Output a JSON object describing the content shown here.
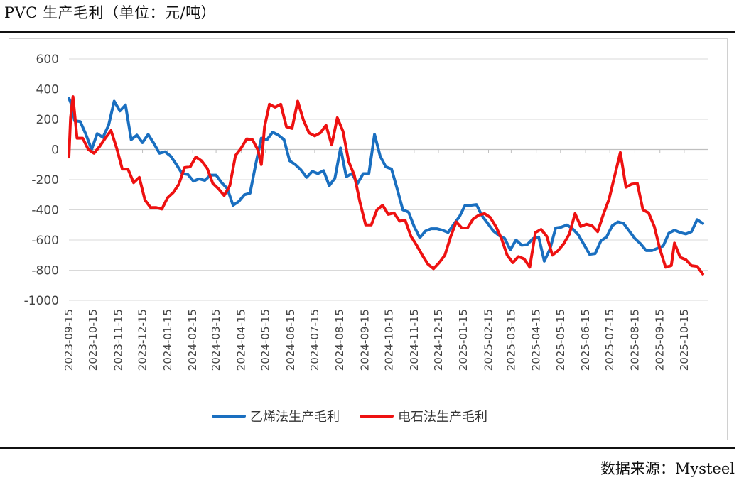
{
  "header": {
    "title": "PVC 生产毛利（单位：元/吨）"
  },
  "footer": {
    "source": "数据来源：Mysteel"
  },
  "colors": {
    "series1": "#1a6fc0",
    "series2": "#ee1111",
    "grid": "#d9d9d9",
    "axis": "#bfbfbf"
  },
  "chart_data": {
    "type": "line",
    "title": "",
    "xlabel": "",
    "ylabel": "",
    "ylim": [
      -1000,
      600
    ],
    "yticks": [
      600,
      400,
      200,
      0,
      -200,
      -400,
      -600,
      -800,
      -1000
    ],
    "grid": "horizontal",
    "legend_position": "bottom",
    "x_tick_labels": [
      "2023-09-15",
      "2023-10-15",
      "2023-11-15",
      "2023-12-15",
      "2024-01-15",
      "2024-02-15",
      "2024-03-15",
      "2024-04-15",
      "2024-05-15",
      "2024-06-15",
      "2024-07-15",
      "2024-08-15",
      "2024-09-15",
      "2024-10-15",
      "2024-11-15",
      "2024-12-15",
      "2025-01-15",
      "2025-02-15",
      "2025-03-15",
      "2025-04-15",
      "2025-05-15",
      "2025-06-15",
      "2025-07-15",
      "2025-08-15",
      "2025-09-15",
      "2025-10-15"
    ],
    "x_start": "2023-09-15",
    "x_end": "2025-11-14",
    "series": [
      {
        "name": "乙烯法生产毛利",
        "color": "#1a6fc0",
        "points": [
          [
            "2023-09-15",
            340
          ],
          [
            "2023-09-18",
            300
          ],
          [
            "2023-09-22",
            190
          ],
          [
            "2023-09-29",
            185
          ],
          [
            "2023-10-06",
            100
          ],
          [
            "2023-10-13",
            0
          ],
          [
            "2023-10-20",
            105
          ],
          [
            "2023-10-27",
            80
          ],
          [
            "2023-11-03",
            160
          ],
          [
            "2023-11-10",
            320
          ],
          [
            "2023-11-17",
            255
          ],
          [
            "2023-11-24",
            295
          ],
          [
            "2023-12-01",
            65
          ],
          [
            "2023-12-08",
            95
          ],
          [
            "2023-12-15",
            45
          ],
          [
            "2023-12-22",
            100
          ],
          [
            "2023-12-29",
            40
          ],
          [
            "2024-01-05",
            -25
          ],
          [
            "2024-01-12",
            -15
          ],
          [
            "2024-01-19",
            -45
          ],
          [
            "2024-01-26",
            -100
          ],
          [
            "2024-02-02",
            -160
          ],
          [
            "2024-02-09",
            -165
          ],
          [
            "2024-02-16",
            -210
          ],
          [
            "2024-02-23",
            -195
          ],
          [
            "2024-03-01",
            -205
          ],
          [
            "2024-03-08",
            -170
          ],
          [
            "2024-03-15",
            -170
          ],
          [
            "2024-03-22",
            -220
          ],
          [
            "2024-03-29",
            -260
          ],
          [
            "2024-04-05",
            -370
          ],
          [
            "2024-04-12",
            -345
          ],
          [
            "2024-04-19",
            -300
          ],
          [
            "2024-04-26",
            -290
          ],
          [
            "2024-05-03",
            -100
          ],
          [
            "2024-05-10",
            75
          ],
          [
            "2024-05-17",
            65
          ],
          [
            "2024-05-24",
            115
          ],
          [
            "2024-05-31",
            95
          ],
          [
            "2024-06-07",
            65
          ],
          [
            "2024-06-14",
            -75
          ],
          [
            "2024-06-21",
            -100
          ],
          [
            "2024-06-28",
            -135
          ],
          [
            "2024-07-05",
            -185
          ],
          [
            "2024-07-12",
            -145
          ],
          [
            "2024-07-19",
            -160
          ],
          [
            "2024-07-26",
            -140
          ],
          [
            "2024-08-02",
            -240
          ],
          [
            "2024-08-09",
            -190
          ],
          [
            "2024-08-16",
            10
          ],
          [
            "2024-08-23",
            -180
          ],
          [
            "2024-08-30",
            -160
          ],
          [
            "2024-09-06",
            -225
          ],
          [
            "2024-09-13",
            -160
          ],
          [
            "2024-09-20",
            -160
          ],
          [
            "2024-09-27",
            100
          ],
          [
            "2024-10-04",
            -45
          ],
          [
            "2024-10-11",
            -115
          ],
          [
            "2024-10-18",
            -130
          ],
          [
            "2024-10-25",
            -260
          ],
          [
            "2024-11-01",
            -400
          ],
          [
            "2024-11-08",
            -415
          ],
          [
            "2024-11-15",
            -510
          ],
          [
            "2024-11-22",
            -585
          ],
          [
            "2024-11-29",
            -540
          ],
          [
            "2024-12-06",
            -525
          ],
          [
            "2024-12-13",
            -525
          ],
          [
            "2024-12-20",
            -535
          ],
          [
            "2024-12-27",
            -550
          ],
          [
            "2025-01-03",
            -495
          ],
          [
            "2025-01-10",
            -445
          ],
          [
            "2025-01-17",
            -370
          ],
          [
            "2025-01-24",
            -370
          ],
          [
            "2025-01-31",
            -365
          ],
          [
            "2025-02-07",
            -440
          ],
          [
            "2025-02-14",
            -490
          ],
          [
            "2025-02-21",
            -540
          ],
          [
            "2025-02-28",
            -570
          ],
          [
            "2025-03-07",
            -590
          ],
          [
            "2025-03-14",
            -665
          ],
          [
            "2025-03-21",
            -600
          ],
          [
            "2025-03-28",
            -635
          ],
          [
            "2025-04-04",
            -630
          ],
          [
            "2025-04-11",
            -590
          ],
          [
            "2025-04-18",
            -580
          ],
          [
            "2025-04-25",
            -740
          ],
          [
            "2025-05-02",
            -660
          ],
          [
            "2025-05-09",
            -520
          ],
          [
            "2025-05-16",
            -515
          ],
          [
            "2025-05-23",
            -500
          ],
          [
            "2025-05-30",
            -525
          ],
          [
            "2025-06-06",
            -565
          ],
          [
            "2025-06-13",
            -630
          ],
          [
            "2025-06-20",
            -695
          ],
          [
            "2025-06-27",
            -690
          ],
          [
            "2025-07-04",
            -605
          ],
          [
            "2025-07-11",
            -580
          ],
          [
            "2025-07-18",
            -505
          ],
          [
            "2025-07-25",
            -480
          ],
          [
            "2025-08-01",
            -490
          ],
          [
            "2025-08-08",
            -540
          ],
          [
            "2025-08-15",
            -590
          ],
          [
            "2025-08-22",
            -625
          ],
          [
            "2025-08-29",
            -670
          ],
          [
            "2025-09-05",
            -670
          ],
          [
            "2025-09-12",
            -655
          ],
          [
            "2025-09-19",
            -640
          ],
          [
            "2025-09-26",
            -555
          ],
          [
            "2025-10-03",
            -535
          ],
          [
            "2025-10-10",
            -550
          ],
          [
            "2025-10-17",
            -560
          ],
          [
            "2025-10-24",
            -545
          ],
          [
            "2025-10-31",
            -465
          ],
          [
            "2025-11-07",
            -490
          ]
        ]
      },
      {
        "name": "电石法生产毛利",
        "color": "#ee1111",
        "points": [
          [
            "2023-09-15",
            -50
          ],
          [
            "2023-09-17",
            210
          ],
          [
            "2023-09-20",
            350
          ],
          [
            "2023-09-25",
            75
          ],
          [
            "2023-10-02",
            75
          ],
          [
            "2023-10-09",
            0
          ],
          [
            "2023-10-16",
            -25
          ],
          [
            "2023-10-23",
            20
          ],
          [
            "2023-10-30",
            75
          ],
          [
            "2023-11-06",
            125
          ],
          [
            "2023-11-13",
            10
          ],
          [
            "2023-11-20",
            -130
          ],
          [
            "2023-11-27",
            -130
          ],
          [
            "2023-12-04",
            -220
          ],
          [
            "2023-12-11",
            -185
          ],
          [
            "2023-12-18",
            -335
          ],
          [
            "2023-12-25",
            -385
          ],
          [
            "2024-01-01",
            -385
          ],
          [
            "2024-01-08",
            -395
          ],
          [
            "2024-01-15",
            -320
          ],
          [
            "2024-01-22",
            -285
          ],
          [
            "2024-01-29",
            -230
          ],
          [
            "2024-02-05",
            -120
          ],
          [
            "2024-02-12",
            -115
          ],
          [
            "2024-02-19",
            -50
          ],
          [
            "2024-02-26",
            -75
          ],
          [
            "2024-03-04",
            -125
          ],
          [
            "2024-03-11",
            -225
          ],
          [
            "2024-03-18",
            -260
          ],
          [
            "2024-03-25",
            -305
          ],
          [
            "2024-04-01",
            -240
          ],
          [
            "2024-04-08",
            -40
          ],
          [
            "2024-04-15",
            10
          ],
          [
            "2024-04-22",
            70
          ],
          [
            "2024-04-29",
            65
          ],
          [
            "2024-05-06",
            -5
          ],
          [
            "2024-05-10",
            -100
          ],
          [
            "2024-05-14",
            150
          ],
          [
            "2024-05-20",
            300
          ],
          [
            "2024-05-27",
            280
          ],
          [
            "2024-06-03",
            300
          ],
          [
            "2024-06-10",
            150
          ],
          [
            "2024-06-17",
            140
          ],
          [
            "2024-06-24",
            320
          ],
          [
            "2024-07-01",
            195
          ],
          [
            "2024-07-08",
            110
          ],
          [
            "2024-07-15",
            90
          ],
          [
            "2024-07-22",
            110
          ],
          [
            "2024-07-29",
            160
          ],
          [
            "2024-08-05",
            30
          ],
          [
            "2024-08-12",
            210
          ],
          [
            "2024-08-19",
            120
          ],
          [
            "2024-08-26",
            -80
          ],
          [
            "2024-09-02",
            -170
          ],
          [
            "2024-09-09",
            -350
          ],
          [
            "2024-09-16",
            -500
          ],
          [
            "2024-09-23",
            -500
          ],
          [
            "2024-09-30",
            -400
          ],
          [
            "2024-10-07",
            -370
          ],
          [
            "2024-10-14",
            -430
          ],
          [
            "2024-10-21",
            -420
          ],
          [
            "2024-10-28",
            -475
          ],
          [
            "2024-11-04",
            -470
          ],
          [
            "2024-11-11",
            -575
          ],
          [
            "2024-11-18",
            -635
          ],
          [
            "2024-11-25",
            -700
          ],
          [
            "2024-12-02",
            -760
          ],
          [
            "2024-12-09",
            -790
          ],
          [
            "2024-12-16",
            -750
          ],
          [
            "2024-12-23",
            -700
          ],
          [
            "2024-12-30",
            -580
          ],
          [
            "2025-01-06",
            -480
          ],
          [
            "2025-01-13",
            -520
          ],
          [
            "2025-01-20",
            -520
          ],
          [
            "2025-01-27",
            -460
          ],
          [
            "2025-02-03",
            -435
          ],
          [
            "2025-02-10",
            -425
          ],
          [
            "2025-02-17",
            -450
          ],
          [
            "2025-02-24",
            -510
          ],
          [
            "2025-03-03",
            -590
          ],
          [
            "2025-03-10",
            -700
          ],
          [
            "2025-03-17",
            -750
          ],
          [
            "2025-03-24",
            -710
          ],
          [
            "2025-03-31",
            -725
          ],
          [
            "2025-04-07",
            -780
          ],
          [
            "2025-04-14",
            -550
          ],
          [
            "2025-04-21",
            -530
          ],
          [
            "2025-04-28",
            -575
          ],
          [
            "2025-05-05",
            -700
          ],
          [
            "2025-05-12",
            -670
          ],
          [
            "2025-05-19",
            -625
          ],
          [
            "2025-05-26",
            -560
          ],
          [
            "2025-06-02",
            -425
          ],
          [
            "2025-06-09",
            -510
          ],
          [
            "2025-06-16",
            -495
          ],
          [
            "2025-06-23",
            -505
          ],
          [
            "2025-06-30",
            -545
          ],
          [
            "2025-07-07",
            -430
          ],
          [
            "2025-07-14",
            -330
          ],
          [
            "2025-07-21",
            -175
          ],
          [
            "2025-07-28",
            -20
          ],
          [
            "2025-08-04",
            -250
          ],
          [
            "2025-08-11",
            -230
          ],
          [
            "2025-08-18",
            -225
          ],
          [
            "2025-08-25",
            -400
          ],
          [
            "2025-09-01",
            -420
          ],
          [
            "2025-09-08",
            -510
          ],
          [
            "2025-09-15",
            -660
          ],
          [
            "2025-09-22",
            -780
          ],
          [
            "2025-09-29",
            -770
          ],
          [
            "2025-10-03",
            -620
          ],
          [
            "2025-10-10",
            -715
          ],
          [
            "2025-10-17",
            -730
          ],
          [
            "2025-10-24",
            -770
          ],
          [
            "2025-10-31",
            -775
          ],
          [
            "2025-11-07",
            -825
          ]
        ]
      }
    ]
  }
}
